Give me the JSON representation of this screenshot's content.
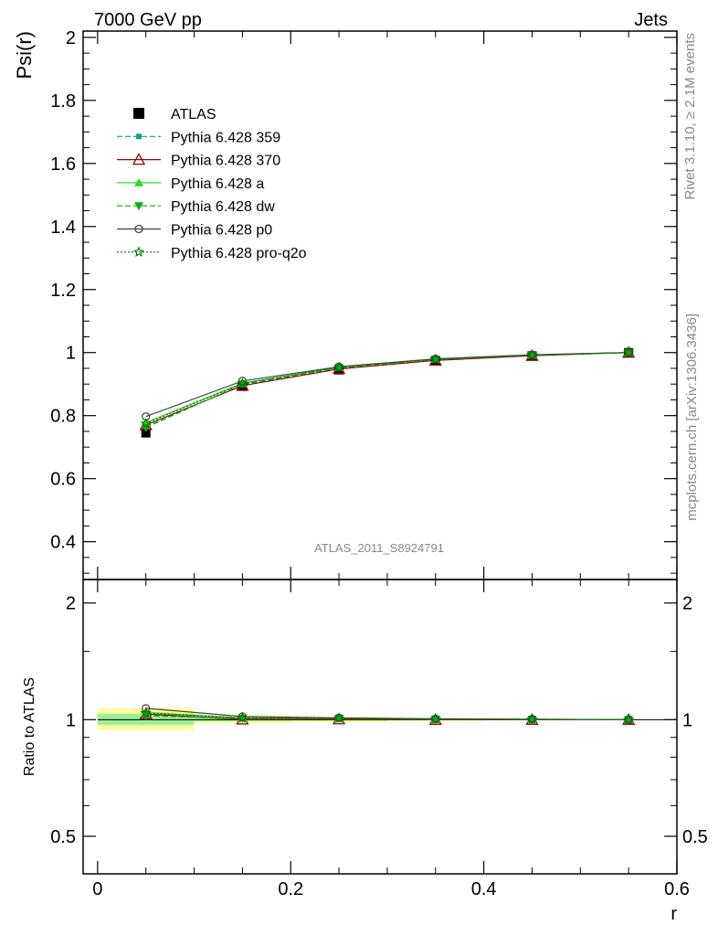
{
  "header": {
    "left": "7000 GeV pp",
    "right": "Jets"
  },
  "side_labels": {
    "rivet": "Rivet 3.1.10, ≥ 2.1M events",
    "mcplots": "mcplots.cern.ch [arXiv:1306.3436]"
  },
  "analysis_label": "ATLAS_2011_S8924791",
  "chart_data": [
    {
      "type": "line",
      "panel": "main",
      "ylabel": "Psi(r)",
      "xlabel": "r",
      "xlim": [
        -0.015,
        0.6
      ],
      "ylim": [
        0.28,
        2.02
      ],
      "yticks": [
        0.4,
        0.6,
        0.8,
        1,
        1.2,
        1.4,
        1.6,
        1.8,
        2
      ],
      "ytick_labels": [
        "0.4",
        "0.6",
        "0.8",
        "1",
        "1.2",
        "1.4",
        "1.6",
        "1.8",
        "2"
      ],
      "legend_position": "top-left",
      "x": [
        0.05,
        0.15,
        0.25,
        0.35,
        0.45,
        0.55
      ],
      "series": [
        {
          "name": "ATLAS",
          "values": [
            0.745,
            0.893,
            0.945,
            0.975,
            0.99,
            1.0
          ],
          "color": "#000000",
          "marker": "square",
          "line": "none"
        },
        {
          "name": "Pythia 6.428 359",
          "values": [
            0.765,
            0.898,
            0.95,
            0.977,
            0.991,
            1.0
          ],
          "color": "#00aa88",
          "marker": "smallsquare",
          "line": "dashed"
        },
        {
          "name": "Pythia 6.428 370",
          "values": [
            0.77,
            0.895,
            0.948,
            0.975,
            0.99,
            1.0
          ],
          "color": "#990000",
          "marker": "triangle-open",
          "line": "solid"
        },
        {
          "name": "Pythia 6.428 a",
          "values": [
            0.778,
            0.903,
            0.954,
            0.979,
            0.992,
            1.0
          ],
          "color": "#22dd22",
          "marker": "triangle",
          "line": "solid"
        },
        {
          "name": "Pythia 6.428 dw",
          "values": [
            0.762,
            0.9,
            0.952,
            0.978,
            0.992,
            1.0
          ],
          "color": "#11aa11",
          "marker": "triangle-down",
          "line": "dashed"
        },
        {
          "name": "Pythia 6.428 p0",
          "values": [
            0.797,
            0.91,
            0.955,
            0.98,
            0.993,
            1.0
          ],
          "color": "#444444",
          "marker": "circle-open",
          "line": "solid"
        },
        {
          "name": "Pythia 6.428 pro-q2o",
          "values": [
            0.775,
            0.902,
            0.953,
            0.979,
            0.992,
            1.0
          ],
          "color": "#007700",
          "marker": "star",
          "line": "dotted"
        }
      ]
    },
    {
      "type": "line",
      "panel": "ratio",
      "ylabel": "Ratio to ATLAS",
      "xlabel": "r",
      "xlim": [
        -0.015,
        0.6
      ],
      "ylim": [
        0.4,
        2.3
      ],
      "yscale": "log",
      "yticks": [
        0.5,
        1,
        2
      ],
      "ytick_labels": [
        "0.5",
        "1",
        "2"
      ],
      "xticks": [
        0,
        0.2,
        0.4,
        0.6
      ],
      "xtick_labels": [
        "0",
        "0.2",
        "0.4",
        "0.6"
      ],
      "bands": [
        {
          "x0": 0.0,
          "x1": 0.1,
          "green": [
            0.97,
            1.035
          ],
          "yellow": [
            0.94,
            1.07
          ]
        },
        {
          "x0": 0.1,
          "x1": 0.2,
          "green": [
            0.99,
            1.012
          ],
          "yellow": [
            0.98,
            1.025
          ]
        },
        {
          "x0": 0.2,
          "x1": 0.3,
          "green": [
            0.993,
            1.007
          ],
          "yellow": [
            0.985,
            1.015
          ]
        },
        {
          "x0": 0.3,
          "x1": 0.4,
          "green": [
            0.996,
            1.004
          ],
          "yellow": [
            0.992,
            1.008
          ]
        },
        {
          "x0": 0.4,
          "x1": 0.5,
          "green": [
            0.998,
            1.002
          ],
          "yellow": [
            0.996,
            1.004
          ]
        },
        {
          "x0": 0.5,
          "x1": 0.6,
          "green": [
            0.999,
            1.001
          ],
          "yellow": [
            0.998,
            1.002
          ]
        }
      ],
      "x": [
        0.05,
        0.15,
        0.25,
        0.35,
        0.45,
        0.55
      ],
      "series": [
        {
          "name": "Pythia 6.428 359",
          "values": [
            1.027,
            1.006,
            1.005,
            1.002,
            1.001,
            1.0
          ],
          "color": "#00aa88",
          "marker": "smallsquare",
          "line": "dashed"
        },
        {
          "name": "Pythia 6.428 370",
          "values": [
            1.034,
            1.002,
            1.003,
            1.0,
            1.0,
            1.0
          ],
          "color": "#990000",
          "marker": "triangle-open",
          "line": "solid"
        },
        {
          "name": "Pythia 6.428 a",
          "values": [
            1.044,
            1.011,
            1.009,
            1.004,
            1.002,
            1.0
          ],
          "color": "#22dd22",
          "marker": "triangle",
          "line": "solid"
        },
        {
          "name": "Pythia 6.428 dw",
          "values": [
            1.023,
            1.008,
            1.007,
            1.003,
            1.002,
            1.0
          ],
          "color": "#11aa11",
          "marker": "triangle-down",
          "line": "dashed"
        },
        {
          "name": "Pythia 6.428 p0",
          "values": [
            1.07,
            1.019,
            1.011,
            1.005,
            1.003,
            1.0
          ],
          "color": "#444444",
          "marker": "circle-open",
          "line": "solid"
        },
        {
          "name": "Pythia 6.428 pro-q2o",
          "values": [
            1.04,
            1.01,
            1.008,
            1.004,
            1.002,
            1.0
          ],
          "color": "#007700",
          "marker": "star",
          "line": "dotted"
        }
      ]
    }
  ]
}
